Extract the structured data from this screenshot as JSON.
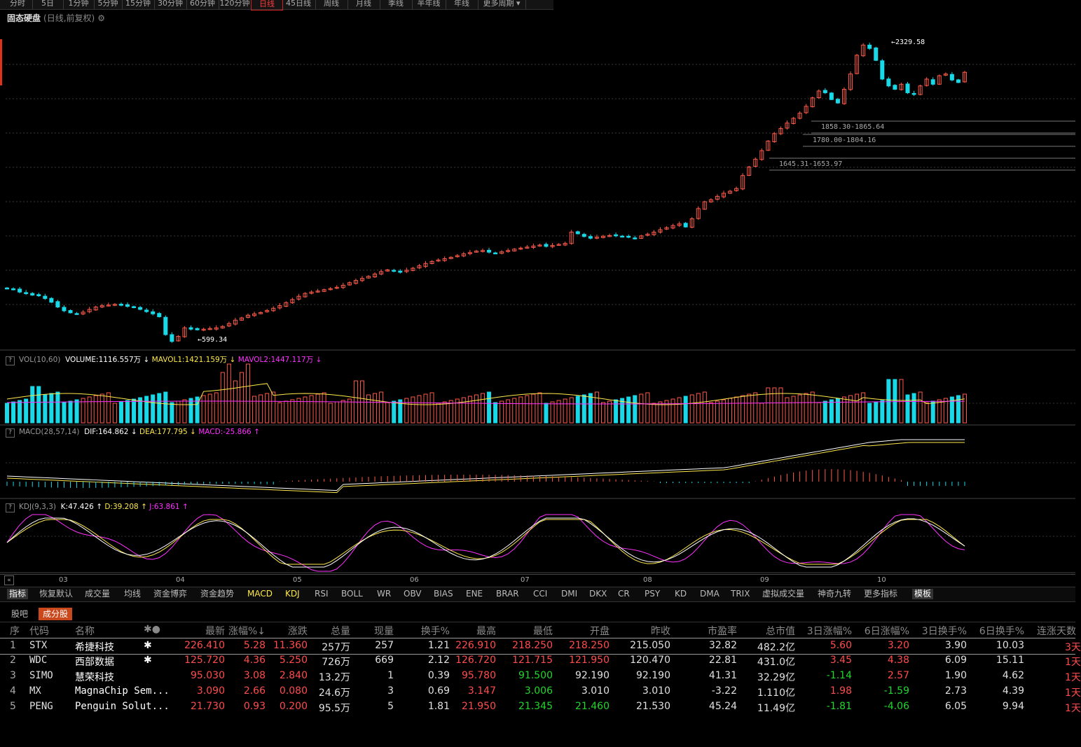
{
  "period_tabs": [
    "分时",
    "5日",
    "1分钟",
    "5分钟",
    "15分钟",
    "30分钟",
    "60分钟",
    "120分钟",
    "日线",
    "45日线",
    "周线",
    "月线",
    "季线",
    "半年线",
    "年线",
    "更多周期"
  ],
  "active_period": "日线",
  "title": {
    "stock": "固态硬盘",
    "subtitle": "(日线,前复权)",
    "gear": "⚙"
  },
  "price_labels": {
    "high": "2329.58",
    "low": "599.34",
    "zone1": "1858.30-1865.64",
    "zone2": "1780.00-1804.16",
    "zone3": "1645.31-1653.97"
  },
  "vol_label": {
    "name": "VOL(10,60)",
    "volume": "VOLUME:1116.557万",
    "mavol1": "MAVOL1:1421.159万",
    "mavol2": "MAVOL2:1447.117万",
    "arrow1": "↓",
    "arrow2": "↓",
    "arrow3": "↓"
  },
  "macd_label": {
    "name": "MACD(28,57,14)",
    "dif": "DIF:164.862",
    "dea": "DEA:177.795",
    "macd": "MACD:-25.866",
    "arrow1": "↓",
    "arrow2": "↓",
    "arrow3": "↑"
  },
  "kdj_label": {
    "name": "KDJ(9,3,3)",
    "k": "K:47.426",
    "d": "D:39.208",
    "j": "J:63.861",
    "arrow1": "↑",
    "arrow2": "↑",
    "arrow3": "↑"
  },
  "date_ticks": [
    "03",
    "04",
    "05",
    "06",
    "07",
    "08",
    "09",
    "10"
  ],
  "indicator_tabs": [
    "指标",
    "恢复默认",
    "成交量",
    "均线",
    "资金博弈",
    "资金趋势",
    "MACD",
    "KDJ",
    "RSI",
    "BOLL",
    "WR",
    "OBV",
    "BIAS",
    "ENE",
    "BRAR",
    "CCI",
    "DMI",
    "DKX",
    "CR",
    "PSY",
    "KD",
    "DMA",
    "TRIX",
    "虚拟成交量",
    "神奇九转",
    "更多指标",
    "模板"
  ],
  "bottom_tabs": [
    "股吧",
    "成分股"
  ],
  "table": {
    "headers": [
      "序",
      "代码",
      "名称",
      "✱●",
      "最新",
      "涨幅%↓",
      "涨跌",
      "总量",
      "现量",
      "换手%",
      "最高",
      "最低",
      "开盘",
      "昨收",
      "市盈率",
      "总市值",
      "3日涨幅%",
      "6日涨幅%",
      "3日换手%",
      "6日换手%",
      "连涨天数"
    ],
    "rows": [
      {
        "no": "1",
        "code": "STX",
        "name": "希捷科技",
        "mark": "✱",
        "last": "226.410",
        "pct": "5.28",
        "chg": "11.360",
        "vol": "257万",
        "cur": "257",
        "turn": "1.21",
        "high": "226.910",
        "low": "218.250",
        "open": "218.250",
        "prev": "215.050",
        "pe": "32.82",
        "cap": "482.2亿",
        "r3": "5.60",
        "r6": "3.20",
        "t3": "3.90",
        "t6": "10.03",
        "up": "3天"
      },
      {
        "no": "2",
        "code": "WDC",
        "name": "西部数据",
        "mark": "✱",
        "last": "125.720",
        "pct": "4.36",
        "chg": "5.250",
        "vol": "726万",
        "cur": "669",
        "turn": "2.12",
        "high": "126.720",
        "low": "121.715",
        "open": "121.950",
        "prev": "120.470",
        "pe": "22.81",
        "cap": "431.0亿",
        "r3": "3.45",
        "r6": "4.38",
        "t3": "6.09",
        "t6": "15.11",
        "up": "1天"
      },
      {
        "no": "3",
        "code": "SIMO",
        "name": "慧荣科技",
        "mark": "",
        "last": "95.030",
        "pct": "3.08",
        "chg": "2.840",
        "vol": "13.2万",
        "cur": "1",
        "turn": "0.39",
        "high": "95.780",
        "low": "91.500",
        "open": "92.190",
        "prev": "92.190",
        "pe": "41.31",
        "cap": "32.29亿",
        "r3": "-1.14",
        "r6": "2.57",
        "t3": "1.90",
        "t6": "4.62",
        "up": "1天"
      },
      {
        "no": "4",
        "code": "MX",
        "name": "MagnaChip Sem...",
        "mark": "",
        "last": "3.090",
        "pct": "2.66",
        "chg": "0.080",
        "vol": "24.6万",
        "cur": "3",
        "turn": "0.69",
        "high": "3.147",
        "low": "3.006",
        "open": "3.010",
        "prev": "3.010",
        "pe": "-3.22",
        "cap": "1.110亿",
        "r3": "1.98",
        "r6": "-1.59",
        "t3": "2.73",
        "t6": "4.39",
        "up": "1天"
      },
      {
        "no": "5",
        "code": "PENG",
        "name": "Penguin Solut...",
        "mark": "",
        "last": "21.730",
        "pct": "0.93",
        "chg": "0.200",
        "vol": "95.5万",
        "cur": "5",
        "turn": "1.81",
        "high": "21.950",
        "low": "21.345",
        "open": "21.460",
        "prev": "21.530",
        "pe": "45.24",
        "cap": "11.49亿",
        "r3": "-1.81",
        "r6": "-4.06",
        "t3": "6.05",
        "t6": "9.94",
        "up": "1天"
      }
    ]
  },
  "chart_data": {
    "type": "candlestick",
    "price_axis_range": [
      599.34,
      2329.58
    ],
    "high_marker": "2329.58",
    "low_marker": "599.34",
    "close_series": [
      890,
      885,
      870,
      862,
      852,
      848,
      832,
      810,
      782,
      760,
      748,
      742,
      752,
      768,
      782,
      790,
      794,
      798,
      792,
      786,
      778,
      768,
      755,
      742,
      725,
      620,
      580,
      610,
      660,
      652,
      648,
      652,
      656,
      660,
      668,
      685,
      705,
      718,
      734,
      742,
      750,
      762,
      775,
      790,
      808,
      826,
      845,
      862,
      870,
      876,
      884,
      890,
      898,
      910,
      925,
      938,
      950,
      962,
      976,
      990,
      1000,
      992,
      986,
      998,
      1010,
      1024,
      1038,
      1050,
      1058,
      1066,
      1074,
      1084,
      1094,
      1102,
      1110,
      1114,
      1104,
      1098,
      1106,
      1114,
      1122,
      1128,
      1134,
      1140,
      1146,
      1138,
      1144,
      1150,
      1156,
      1222,
      1212,
      1196,
      1186,
      1192,
      1198,
      1202,
      1200,
      1196,
      1192,
      1186,
      1200,
      1210,
      1222,
      1236,
      1248,
      1260,
      1270,
      1252,
      1300,
      1360,
      1400,
      1412,
      1432,
      1450,
      1462,
      1478,
      1554,
      1604,
      1650,
      1700,
      1756,
      1800,
      1830,
      1862,
      1890,
      1920,
      1960,
      2010,
      2050,
      2040,
      2000,
      1980,
      2060,
      2150,
      2260,
      2320,
      2300,
      2230,
      2120,
      2080,
      2060,
      2090,
      2040,
      2030,
      2080,
      2120,
      2090,
      2140,
      2150,
      2115,
      2100,
      2160
    ]
  }
}
